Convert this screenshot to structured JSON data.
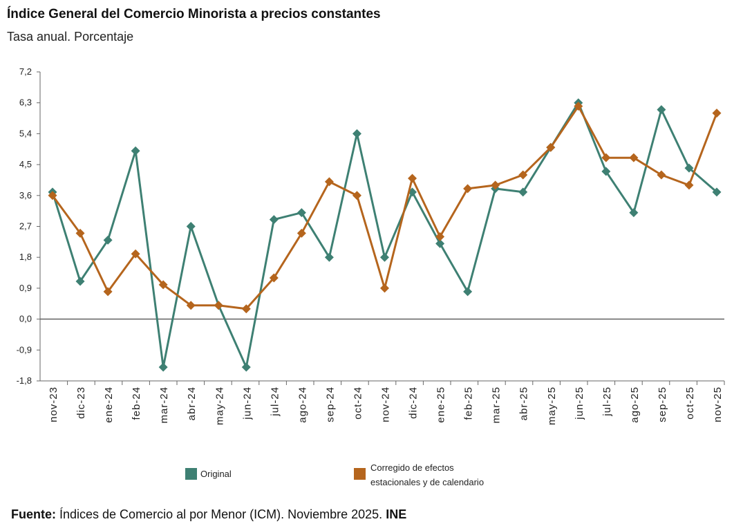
{
  "chart_data": {
    "type": "line",
    "title": "Índice General del Comercio Minorista a precios constantes",
    "subtitle": "Tasa anual. Porcentaje",
    "categories": [
      "nov-23",
      "dic-23",
      "ene-24",
      "feb-24",
      "mar-24",
      "abr-24",
      "may-24",
      "jun-24",
      "jul-24",
      "ago-24",
      "sep-24",
      "oct-24",
      "nov-24",
      "dic-24",
      "ene-25",
      "feb-25",
      "mar-25",
      "abr-25",
      "may-25",
      "jun-25",
      "jul-25",
      "ago-25",
      "sep-25",
      "oct-25",
      "nov-25"
    ],
    "yticks": [
      "7,2",
      "6,3",
      "5,4",
      "4,5",
      "3,6",
      "2,7",
      "1,8",
      "0,9",
      "0,0",
      "-0,9",
      "-1,8"
    ],
    "ylim": [
      -1.8,
      7.2
    ],
    "series": [
      {
        "name": "Original",
        "color": "#3e8073",
        "values": [
          3.7,
          1.1,
          2.3,
          4.9,
          -1.4,
          2.7,
          0.4,
          -1.4,
          2.9,
          3.1,
          1.8,
          5.4,
          1.8,
          3.7,
          2.2,
          0.8,
          3.8,
          3.7,
          5.0,
          6.3,
          4.3,
          3.1,
          6.1,
          4.4,
          3.7
        ]
      },
      {
        "name": "Corregido de efectos estacionales y de calendario",
        "name_line1": "Corregido de efectos",
        "name_line2": "estacionales y de calendario",
        "color": "#b5651d",
        "values": [
          3.6,
          2.5,
          0.8,
          1.9,
          1.0,
          0.4,
          0.4,
          0.3,
          1.2,
          2.5,
          4.0,
          3.6,
          0.9,
          4.1,
          2.4,
          3.8,
          3.9,
          4.2,
          5.0,
          6.2,
          4.7,
          4.7,
          4.2,
          3.9,
          6.0
        ]
      }
    ]
  },
  "footer": {
    "label": "Fuente:",
    "text": " Índices de Comercio al por Menor (ICM). Noviembre 2025. ",
    "brand": "INE"
  }
}
